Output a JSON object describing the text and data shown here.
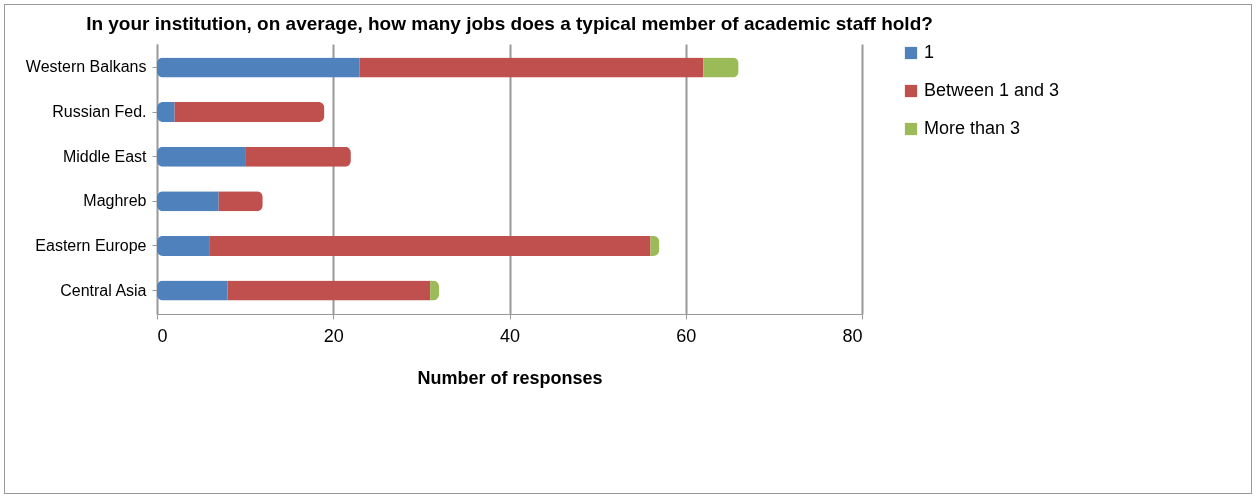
{
  "chart_data": {
    "type": "bar",
    "title": "In your institution, on average, how many jobs does a typical member of academic staff hold?",
    "xlabel": "Number of responses",
    "orientation": "horizontal",
    "stacked": true,
    "categories": [
      "Western Balkans",
      "Russian Fed.",
      "Middle East",
      "Maghreb",
      "Eastern Europe",
      "Central Asia"
    ],
    "series": [
      {
        "name": "1",
        "color": "#4f81bd",
        "values": [
          23,
          2,
          10,
          7,
          6,
          8
        ]
      },
      {
        "name": "Between 1 and 3",
        "color": "#c0504d",
        "values": [
          39,
          17,
          12,
          5,
          50,
          23
        ]
      },
      {
        "name": "More than 3",
        "color": "#9bbb59",
        "values": [
          4,
          0,
          0,
          0,
          1,
          1
        ]
      }
    ],
    "xlim": [
      0,
      80
    ],
    "xticks": [
      0,
      20,
      40,
      60,
      80
    ],
    "grid": "x",
    "legend": "right"
  }
}
